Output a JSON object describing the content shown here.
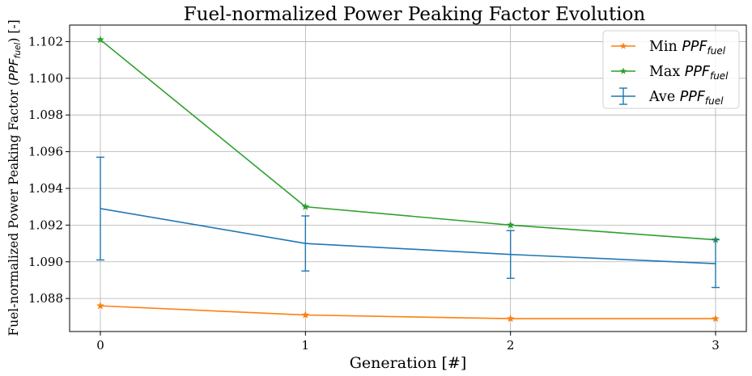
{
  "chart_data": {
    "type": "line",
    "title": "Fuel-normalized Power Peaking Factor Evolution",
    "xlabel": "Generation [#]",
    "ylabel": {
      "prefix": "Fuel-normalized Power Peaking Factor (",
      "var": "PPF",
      "sub": "fuel",
      "suffix": ") [-]"
    },
    "x": [
      0,
      1,
      2,
      3
    ],
    "x_ticks": [
      "0",
      "1",
      "2",
      "3"
    ],
    "xlim": [
      -0.15,
      3.15
    ],
    "ylim": [
      1.0862,
      1.1029
    ],
    "y_ticks": [
      "1.088",
      "1.090",
      "1.092",
      "1.094",
      "1.096",
      "1.098",
      "1.100",
      "1.102"
    ],
    "grid": true,
    "legend_position": "top-right",
    "series": [
      {
        "name": "Min",
        "name_var": "PPF",
        "name_sub": "fuel",
        "color": "#ff7f0e",
        "marker": "star",
        "values": [
          1.0876,
          1.0871,
          1.0869,
          1.0869
        ]
      },
      {
        "name": "Max",
        "name_var": "PPF",
        "name_sub": "fuel",
        "color": "#2ca02c",
        "marker": "star",
        "values": [
          1.1021,
          1.093,
          1.092,
          1.0912
        ]
      },
      {
        "name": "Ave",
        "name_var": "PPF",
        "name_sub": "fuel",
        "color": "#1f77b4",
        "marker": "errorbar",
        "values": [
          1.0929,
          1.091,
          1.0904,
          1.0899
        ],
        "error": [
          0.0028,
          0.0015,
          0.0013,
          0.0013
        ]
      }
    ]
  }
}
